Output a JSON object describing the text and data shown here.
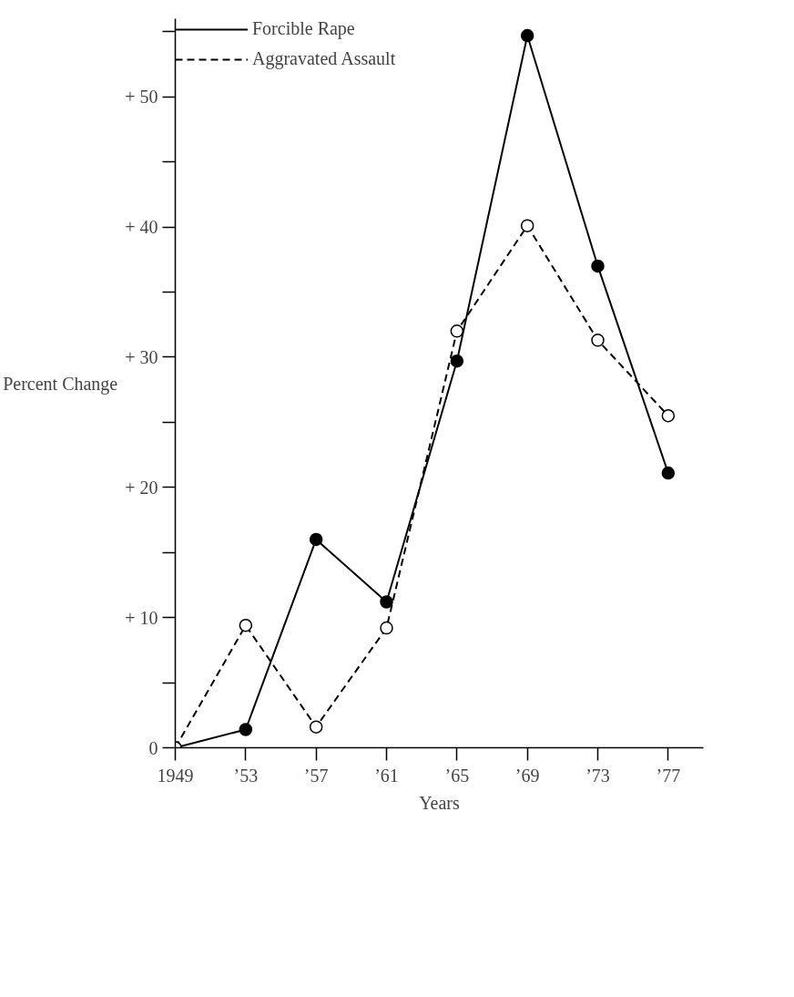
{
  "chart_data": {
    "type": "line",
    "xlabel": "Years",
    "ylabel": "Percent Change",
    "x": [
      1949,
      1953,
      1957,
      1961,
      1965,
      1969,
      1973,
      1977
    ],
    "series": [
      {
        "name": "Forcible Rape",
        "color": "#000000",
        "line_style": "solid",
        "values": [
          0,
          1.4,
          16.0,
          11.2,
          29.7,
          54.7,
          37.0,
          21.1
        ]
      },
      {
        "name": "Aggravated Assault",
        "color": "#000000",
        "line_style": "dashed",
        "values": [
          0,
          9.4,
          1.6,
          9.2,
          32.0,
          40.1,
          31.3,
          25.5
        ]
      }
    ],
    "marker": "circle",
    "grid": false,
    "legend": "top left",
    "xlim": [
      1949,
      1979
    ],
    "ylim": [
      0,
      56
    ],
    "xticks": [
      {
        "value": 1949,
        "label": "1949"
      },
      {
        "value": 1953,
        "label": "’53"
      },
      {
        "value": 1957,
        "label": "’57"
      },
      {
        "value": 1961,
        "label": "’61"
      },
      {
        "value": 1965,
        "label": "’65"
      },
      {
        "value": 1969,
        "label": "’69"
      },
      {
        "value": 1973,
        "label": "’73"
      },
      {
        "value": 1977,
        "label": "’77"
      }
    ],
    "yticks": [
      0,
      {
        "value": 5,
        "label": null
      },
      {
        "value": 10,
        "label": "+ 10"
      },
      {
        "value": 15,
        "label": null
      },
      {
        "value": 20,
        "label": "+ 20"
      },
      {
        "value": 25,
        "label": null
      },
      {
        "value": 30,
        "label": "+ 30"
      },
      {
        "value": 35,
        "label": null
      },
      {
        "value": 40,
        "label": "+ 40"
      },
      {
        "value": 45,
        "label": null
      },
      {
        "value": 50,
        "label": "+ 50"
      },
      {
        "value": 55,
        "label": null
      }
    ]
  }
}
